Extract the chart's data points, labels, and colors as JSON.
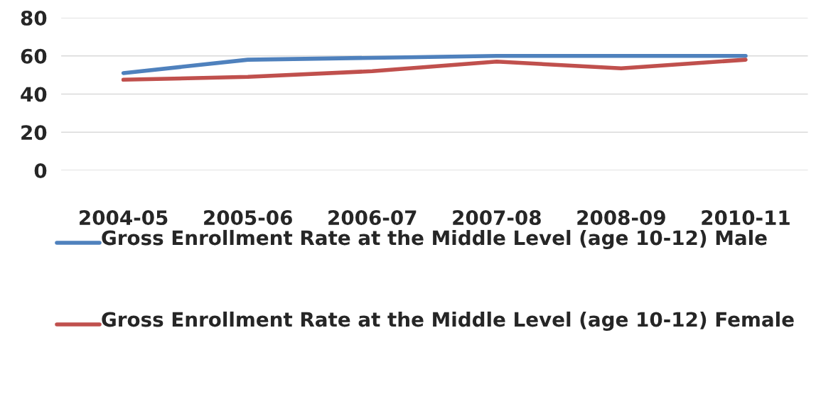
{
  "chart_data": {
    "type": "line",
    "categories": [
      "2004-05",
      "2005-06",
      "2006-07",
      "2007-08",
      "2008-09",
      "2010-11"
    ],
    "series": [
      {
        "name": "Gross Enrollment Rate at the Middle Level (age 10-12) Male",
        "color": "#4f81bd",
        "values": [
          51,
          58,
          59,
          60,
          60,
          60
        ]
      },
      {
        "name": "Gross Enrollment Rate at the Middle Level (age 10-12) Female",
        "color": "#c0504d",
        "values": [
          47.5,
          49,
          52,
          57,
          53.5,
          58
        ]
      }
    ],
    "ylim": [
      0,
      80
    ],
    "yticks": [
      0,
      20,
      40,
      60,
      80
    ],
    "grid": "y",
    "legend": "bottom",
    "marker": "none",
    "line_style": "solid"
  }
}
